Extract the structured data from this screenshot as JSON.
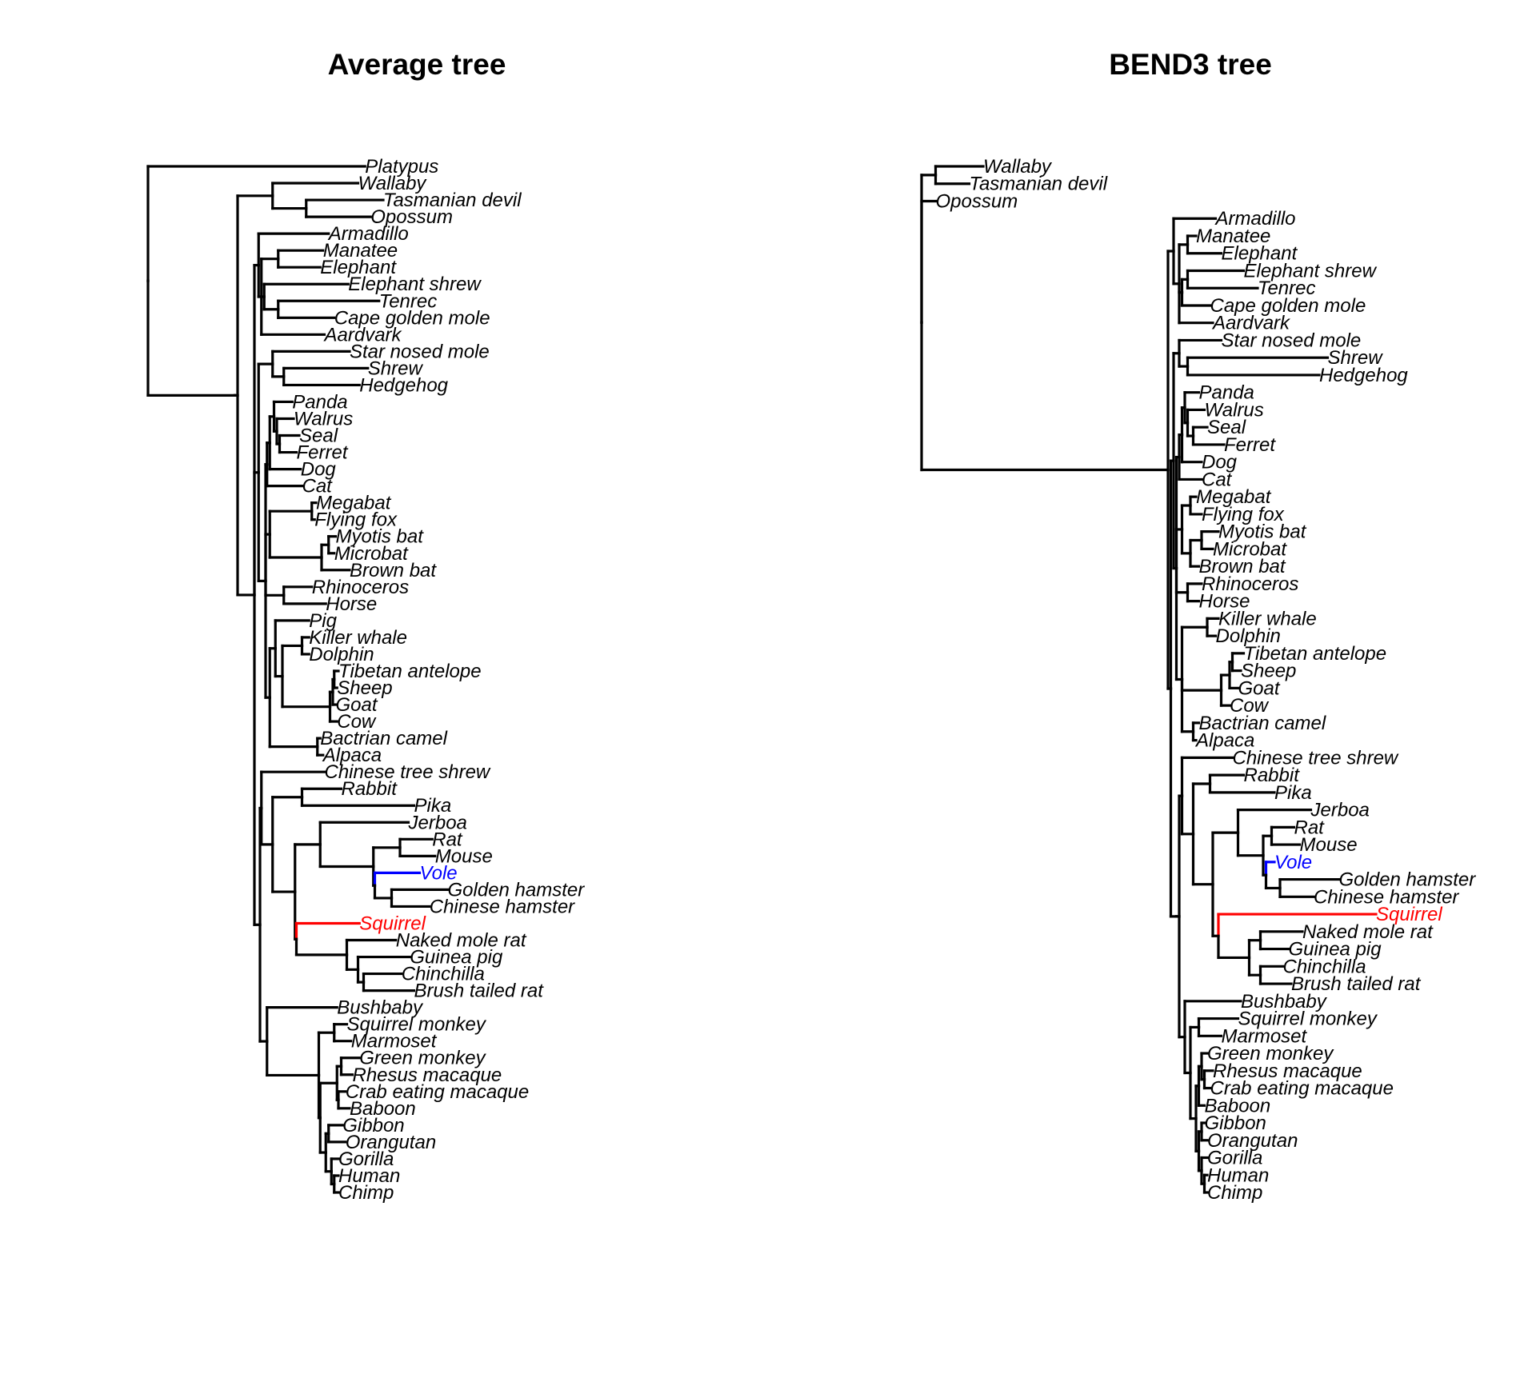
{
  "colors": {
    "default": "#000000",
    "vole": "#0000ff",
    "squirrel": "#ff0000"
  },
  "trees": [
    {
      "id": "average",
      "title": "Average tree",
      "highlights": {
        "Vole": "vole",
        "Squirrel": "squirrel"
      },
      "newick": "(Platypus:1.55,(((Wallaby:0.61,(Tasmanian devil:0.55,Opossum:0.46):0.24):0.25,((Armadillo:0.50,((Manatee:0.32,Elephant:0.30):0.12,(Elephant shrew:0.60,(Tenrec:0.72,Cape golden mole:0.40):0.10):0.02,Aardvark:0.45):0.02):0.03,((Star nosed mole:0.55,(Shrew:0.60,Hedgehog:0.54):0.08):0.10,((((Panda:0.13,(Walrus:0.12,(Seal:0.14,Ferret:0.12):0.02):0.02):0.03,Dog:0.22):0.02,Cat:0.25):0.01,((Megabat:0.03,Flying fox:0.02):0.30,((Myotis bat:0.05,Microbat:0.04):0.05,Brown bat:0.20):0.37):0.03,(Rhinoceros:0.20,Horse:0.30):0.13,((Pig:0.24,((Killer whale:0.05,Dolphin:0.05):0.14,(((Tibetan antelope:0.03,Sheep:0.02):0.01,Goat:0.02):0.02,Cow:0.05):0.34):0.05):0.04,(Bactrian camel:0.02,Alpaca:0.04):0.34):0.03):0.05):0.03,((Chinese tree shrew:0.45,((Rabbit:0.28,Pika:0.80):0.21,((Jerboa:0.63,((Rat:0.23,Mouse:0.25):0.19,(Vole:0.32,(Golden hamster:0.40,Chinese hamster:0.27):0.12):0.01):0.38):0.18,(Squirrel:0.45,(Naked mole rat:0.35,(Guinea pig:0.37,(Chinchilla:0.27,Brush tailed rat:0.36):0.04):0.08):0.36):0.01):0.16):0.08):0.01,(Bushbaby:0.50,((Squirrel monkey:0.09,Marmoset:0.12):0.11,(((Green monkey:0.13,Rhesus macaque:0.08):0.03,(Crab eating macaque:0.05,Baboon:0.08):0.01):0.12,((Gibbon:0.10,Orangutan:0.12):0.02,(Gorilla:0.05,(Human:0.03,Chimp:0.03):0.02):0.04):0.04):0.01):0.37):0.05):0.04):0.12):0.02):0.62):0.55);"
    },
    {
      "id": "bend3",
      "title": "BEND3 tree",
      "highlights": {
        "Vole": "vole",
        "Squirrel": "squirrel"
      },
      "newick": "((Wallaby:0.17,Tasmanian devil:0.12):0.05,Opossum:0.05,((Armadillo:0.15,((Manatee:0.03,Elephant:0.12):0.03,((Elephant shrew:0.20,Tenrec:0.25):0.02,Cape golden mole:0.10):0.01,Aardvark:0.12):0.02):0.02,(((Star nosed mole:0.15,(Shrew:0.50,Hedgehog:0.47):0.03):0.02,((((Panda:0.05,(Walrus:0.06,(Seal:0.05,Ferret:0.11):0.02):0.01):0.01,Dog:0.07):0.01,Cat:0.08):0.01,((Megabat:0.02,Flying fox:0.04):0.03,((Myotis bat:0.06,Microbat:0.04):0.04,Brown bat:0.03):0.03):0.02,(Rhinoceros:0.05,Horse:0.04):0.04,((Killer whale:0.04,Dolphin:0.03):0.09,(((Tibetan antelope:0.04,Sheep:0.03):0.01,Goat:0.03):0.03,Cow:0.03):0.14,(Bactrian camel:0.02,Alpaca:0.01):0.04):0.02):0.01):0.01,(((Chinese tree shrew:0.18,((Rabbit:0.12,Pika:0.23):0.06,((Jerboa:0.26,((Rat:0.08,Mouse:0.10):0.03,(Vole:0.03,(Golden hamster:0.21,Chinese hamster:0.12):0.05):0.01):0.09):0.09,(Squirrel:1.53,((Naked mole rat:0.15,Guinea pig:0.10):0.04,(Chinchilla:0.08,Brush tailed rat:0.11):0.04):0.11):0.02):0.07):0.04):0.01,(Bushbaby:0.20,((Squirrel monkey:0.14,Marmoset:0.08):0.03,(((Green monkey:0.02,(Rhesus macaque:0.03,Crab eating macaque:0.02):0.01):0.01,Baboon:0.02):0.01,((Gibbon:0.01,Orangutan:0.02):0.01,(Gorilla:0.02,(Human:0.01,Chimp:0.01):0.01):0.01):0.01):0.02):0.02):0.02):0.01):0.02):0.01):0.88);"
    }
  ]
}
